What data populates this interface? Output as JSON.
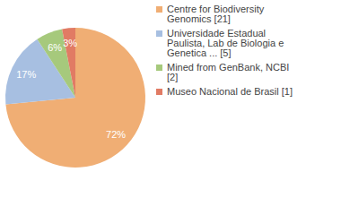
{
  "chart_data": {
    "type": "pie",
    "categories": [
      "Centre for Biodiversity Genomics [21]",
      "Universidade Estadual Paulista, Lab de Biologia e Genetica ... [5]",
      "Mined from GenBank, NCBI [2]",
      "Museo Nacional de Brasil [1]"
    ],
    "values": [
      72,
      17,
      6,
      3
    ],
    "value_labels": [
      "72%",
      "17%",
      "6%",
      "3%"
    ],
    "colors": [
      "#f0ae74",
      "#a7bfe1",
      "#a6c97c",
      "#e17b64"
    ],
    "data_labels": true,
    "legend": "top-right"
  }
}
